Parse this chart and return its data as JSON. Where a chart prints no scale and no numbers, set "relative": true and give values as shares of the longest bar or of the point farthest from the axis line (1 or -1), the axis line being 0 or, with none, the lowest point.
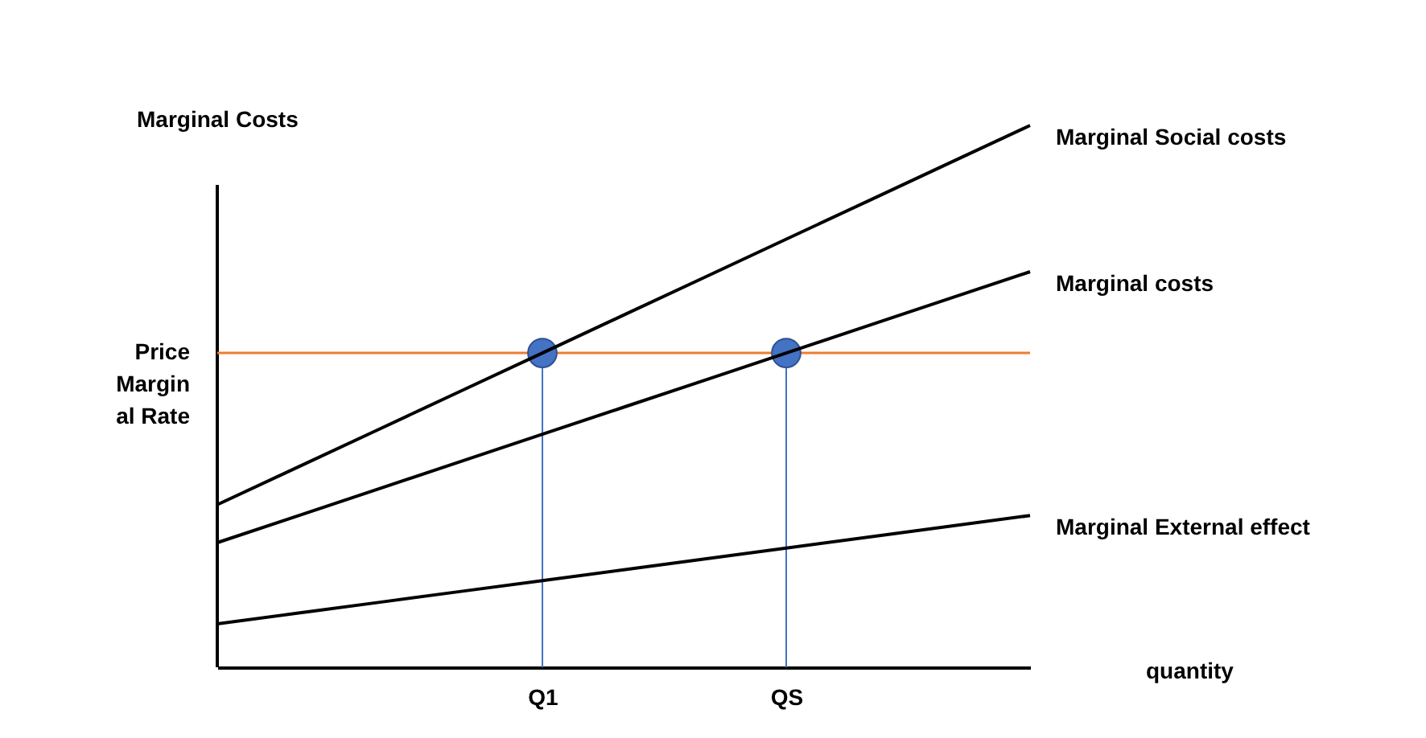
{
  "chart_data": {
    "type": "line",
    "relative": true,
    "ylabel": "Marginal Costs",
    "annotations": [
      "quantity"
    ],
    "categories": [
      null,
      null,
      null,
      null,
      "Q1",
      null,
      null,
      "QS",
      null,
      null,
      null
    ],
    "series": [
      {
        "name": "Marginal Social costs",
        "color": "#000000",
        "values": [
          0.3,
          0.37,
          0.44,
          0.51,
          0.58,
          0.65,
          0.72,
          0.79,
          0.86,
          0.93,
          1.0
        ]
      },
      {
        "name": "Marginal costs",
        "color": "#000000",
        "values": [
          0.23,
          0.28,
          0.33,
          0.38,
          0.43,
          0.48,
          0.53,
          0.58,
          0.63,
          0.68,
          0.73
        ]
      },
      {
        "name": "Marginal External effect",
        "color": "#000000",
        "values": [
          0.08,
          0.1,
          0.12,
          0.14,
          0.16,
          0.18,
          0.2,
          0.22,
          0.24,
          0.26,
          0.28
        ]
      },
      {
        "type": "scatter",
        "marker": "circle",
        "color": "#4472c4",
        "values": [
          null,
          null,
          null,
          null,
          0.58,
          null,
          null,
          0.58,
          null,
          null,
          null
        ]
      }
    ],
    "ref_lines": [
      {
        "axis": "y",
        "value": 0.58,
        "label": "Price Marginal Rate",
        "color": "#ed7d31"
      }
    ]
  }
}
